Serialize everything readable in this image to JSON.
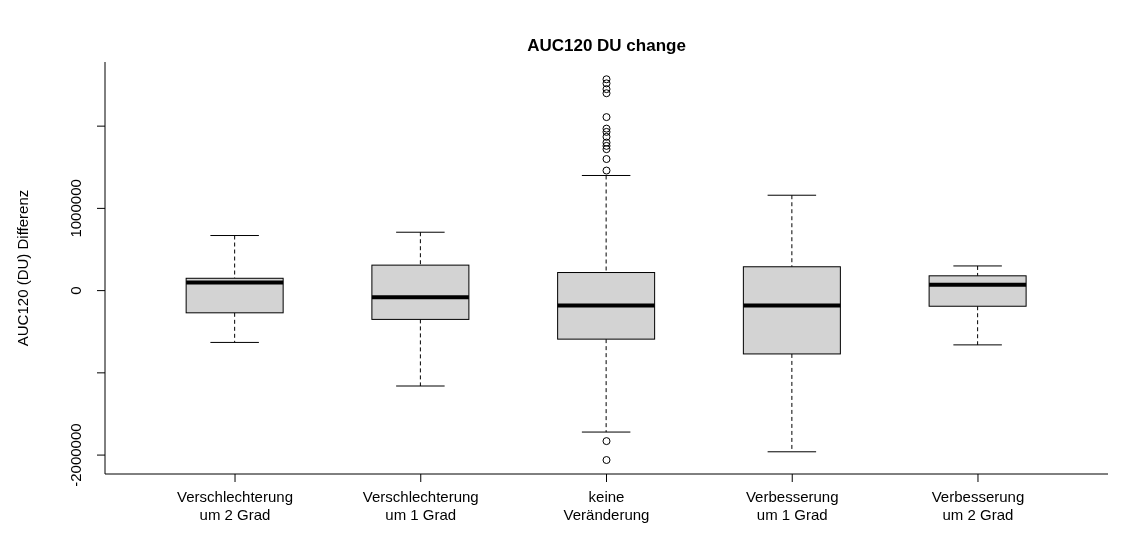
{
  "chart_data": {
    "type": "box",
    "title": "AUC120 DU change",
    "ylabel": "AUC120 (DU) Differenz",
    "categories": [
      "Verschlechterung\num 2 Grad",
      "Verschlechterung\num 1 Grad",
      "keine\nVeränderung",
      "Verbesserung\num 1 Grad",
      "Verbesserung\num 2 Grad"
    ],
    "color": "#d3d3d3",
    "boxes": [
      {
        "low": -630000,
        "q1": -270000,
        "median": 100000,
        "q3": 150000,
        "high": 670000
      },
      {
        "low": -1160000,
        "q1": -350000,
        "median": -80000,
        "q3": 310000,
        "high": 710000
      },
      {
        "low": -1720000,
        "q1": -590000,
        "median": -180000,
        "q3": 220000,
        "high": 1400000,
        "outliers": [
          2570000,
          2520000,
          2450000,
          2400000,
          2110000,
          1970000,
          1930000,
          1870000,
          1800000,
          1760000,
          1720000,
          1600000,
          1460000,
          -1830000,
          -2060000
        ]
      },
      {
        "low": -1960000,
        "q1": -770000,
        "median": -180000,
        "q3": 290000,
        "high": 1160000
      },
      {
        "low": -660000,
        "q1": -190000,
        "median": 70000,
        "q3": 180000,
        "high": 300000
      }
    ],
    "ylim": [
      -2230000,
      2780000
    ],
    "yticks": [
      -2000000,
      {
        "value": -1000000,
        "label": null
      },
      0,
      1000000,
      {
        "value": 2000000,
        "label": null
      }
    ],
    "tick_labels": true
  }
}
